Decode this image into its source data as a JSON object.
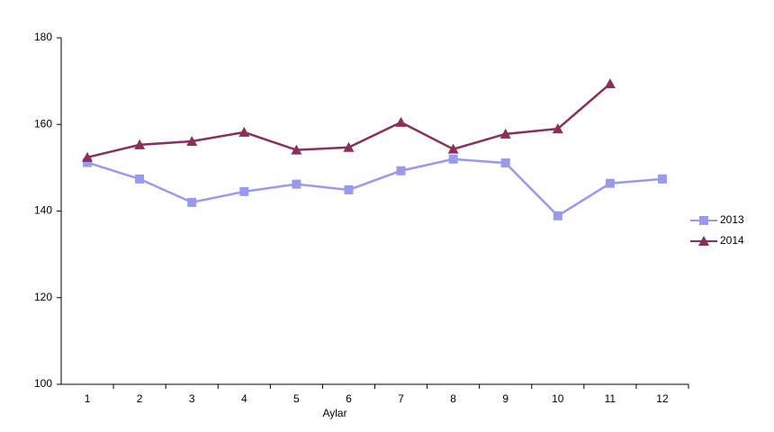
{
  "chart_data": {
    "type": "line",
    "x_label": "Aylar",
    "categories": [
      "1",
      "2",
      "3",
      "4",
      "5",
      "6",
      "7",
      "8",
      "9",
      "10",
      "11",
      "12"
    ],
    "series": [
      {
        "name": "2013",
        "color": "#9999ee",
        "marker": "square",
        "values": [
          151.2,
          147.4,
          142,
          144.5,
          146.2,
          144.9,
          149.3,
          152,
          151.1,
          138.9,
          146.4,
          147.4
        ]
      },
      {
        "name": "2014",
        "color": "#8b2e5a",
        "marker": "triangle",
        "values": [
          152.4,
          155.3,
          156.1,
          158.2,
          154.1,
          154.7,
          160.5,
          154.3,
          157.8,
          159,
          169.4,
          null
        ]
      }
    ],
    "ylim": [
      100,
      180
    ],
    "yticks": [
      100,
      120,
      140,
      160,
      180
    ],
    "grid": false,
    "legend": "right"
  }
}
